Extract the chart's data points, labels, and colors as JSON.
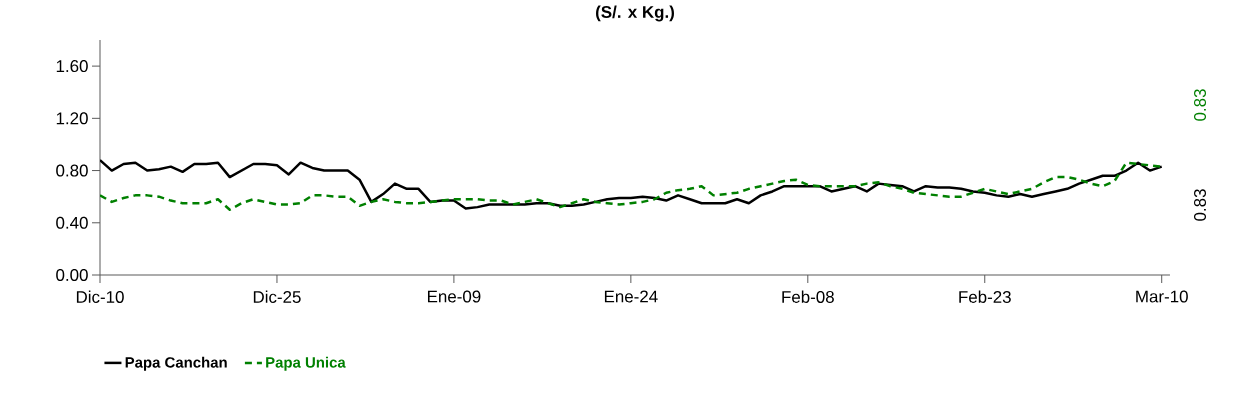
{
  "chart_data": {
    "type": "line",
    "title": "(S/. x Kg.)",
    "categories": [
      "Dic-10",
      null,
      null,
      null,
      null,
      null,
      null,
      null,
      null,
      null,
      null,
      null,
      null,
      null,
      null,
      "Dic-25",
      null,
      null,
      null,
      null,
      null,
      null,
      null,
      null,
      null,
      null,
      null,
      null,
      null,
      null,
      "Ene-09",
      null,
      null,
      null,
      null,
      null,
      null,
      null,
      null,
      null,
      null,
      null,
      null,
      null,
      null,
      "Ene-24",
      null,
      null,
      null,
      null,
      null,
      null,
      null,
      null,
      null,
      null,
      null,
      null,
      null,
      null,
      "Feb-08",
      null,
      null,
      null,
      null,
      null,
      null,
      null,
      null,
      null,
      null,
      null,
      null,
      null,
      null,
      "Feb-23",
      null,
      null,
      null,
      null,
      null,
      null,
      null,
      null,
      null,
      null,
      null,
      null,
      null,
      null,
      "Mar-10"
    ],
    "ylim": [
      0,
      1.8
    ],
    "yticks": [
      {
        "value": 0,
        "label": "0.00"
      },
      {
        "value": 0.4,
        "label": "0.40"
      },
      {
        "value": 0.8,
        "label": "0.80"
      },
      {
        "value": 1.2,
        "label": "1.20"
      },
      {
        "value": 1.6,
        "label": "1.60"
      }
    ],
    "grid": false,
    "legend": "bottom",
    "annotations": [
      "0.83",
      "0.83"
    ],
    "series": [
      {
        "name": "Papa Canchan",
        "color": "#000000",
        "line_style": "solid",
        "values": [
          0.88,
          0.8,
          0.85,
          0.86,
          0.8,
          0.81,
          0.83,
          0.79,
          0.85,
          0.85,
          0.86,
          0.75,
          0.8,
          0.85,
          0.85,
          0.84,
          0.77,
          0.86,
          0.82,
          0.8,
          0.8,
          0.8,
          0.73,
          0.56,
          0.62,
          0.7,
          0.66,
          0.66,
          0.56,
          0.57,
          0.57,
          0.51,
          0.52,
          0.54,
          0.54,
          0.54,
          0.54,
          0.55,
          0.55,
          0.53,
          0.53,
          0.54,
          0.56,
          0.58,
          0.59,
          0.59,
          0.6,
          0.59,
          0.57,
          0.61,
          0.58,
          0.55,
          0.55,
          0.55,
          0.58,
          0.55,
          0.61,
          0.64,
          0.68,
          0.68,
          0.68,
          0.68,
          0.64,
          0.66,
          0.68,
          0.64,
          0.7,
          0.69,
          0.68,
          0.64,
          0.68,
          0.67,
          0.67,
          0.66,
          0.64,
          0.63,
          0.61,
          0.6,
          0.62,
          0.6,
          0.62,
          0.64,
          0.66,
          0.7,
          0.73,
          0.76,
          0.76,
          0.8,
          0.86,
          0.8,
          0.83
        ]
      },
      {
        "name": "Papa Unica",
        "color": "#008000",
        "line_style": "dashed",
        "values": [
          0.61,
          0.56,
          0.59,
          0.61,
          0.61,
          0.6,
          0.57,
          0.55,
          0.55,
          0.55,
          0.58,
          0.5,
          0.55,
          0.58,
          0.56,
          0.54,
          0.54,
          0.55,
          0.61,
          0.61,
          0.6,
          0.6,
          0.53,
          0.56,
          0.58,
          0.56,
          0.55,
          0.55,
          0.56,
          0.57,
          0.58,
          0.58,
          0.58,
          0.57,
          0.57,
          0.54,
          0.56,
          0.58,
          0.55,
          0.52,
          0.55,
          0.58,
          0.56,
          0.55,
          0.54,
          0.55,
          0.56,
          0.58,
          0.63,
          0.65,
          0.66,
          0.68,
          0.61,
          0.62,
          0.63,
          0.66,
          0.68,
          0.7,
          0.72,
          0.73,
          0.69,
          0.68,
          0.68,
          0.68,
          0.68,
          0.7,
          0.71,
          0.68,
          0.66,
          0.63,
          0.62,
          0.61,
          0.6,
          0.6,
          0.63,
          0.66,
          0.64,
          0.62,
          0.64,
          0.66,
          0.71,
          0.75,
          0.75,
          0.73,
          0.7,
          0.68,
          0.72,
          0.86,
          0.85,
          0.84,
          0.83
        ]
      }
    ]
  }
}
